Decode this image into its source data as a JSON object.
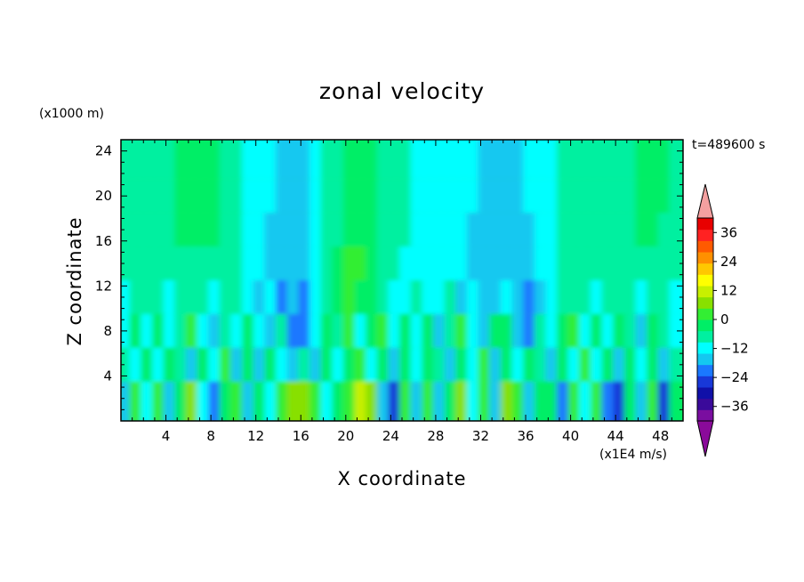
{
  "chart_data": {
    "type": "heatmap",
    "title": "zonal velocity",
    "xlabel": "X coordinate",
    "ylabel": "Z coordinate",
    "x_unit_label": "(x1E4 m/s)",
    "z_unit_label": "(x1000 m)",
    "time_label": "t=489600 s",
    "xlim": [
      0,
      50
    ],
    "ylim": [
      0,
      25
    ],
    "x_ticks": [
      4,
      8,
      12,
      16,
      20,
      24,
      28,
      32,
      36,
      40,
      44,
      48
    ],
    "y_ticks": [
      4,
      8,
      12,
      16,
      20,
      24
    ],
    "colorbar": {
      "min": -42,
      "max": 42,
      "step": 6,
      "tick_values": [
        36,
        24,
        12,
        0,
        -12,
        -24,
        -36
      ],
      "tick_labels": [
        "36",
        "24",
        "12",
        "0",
        "−12",
        "−24",
        "−36"
      ],
      "colors": [
        "#7a0ea0",
        "#3a0a9a",
        "#1010a8",
        "#1838d8",
        "#1a78ff",
        "#14c8f0",
        "#00ffff",
        "#00f0a0",
        "#00ee66",
        "#33ee33",
        "#88e000",
        "#c8f000",
        "#ffff00",
        "#ffc800",
        "#ff9000",
        "#ff5a00",
        "#ff2222",
        "#e80000"
      ],
      "over_color": "#f4a0a0",
      "under_color": "#8a0a9a"
    },
    "approx_field_rows": [
      {
        "z": 23,
        "values": [
          2,
          2,
          2,
          3,
          5,
          7,
          8,
          8,
          7,
          5,
          2,
          -1,
          -4,
          -6,
          -8,
          -8,
          -7,
          -4,
          0,
          4,
          8,
          9,
          8,
          5,
          2,
          0,
          -1,
          -2,
          -2,
          -3,
          -4,
          -6,
          -8,
          -9,
          -9,
          -8,
          -6,
          -4,
          -1,
          1,
          2,
          2,
          2,
          3,
          4,
          5,
          7,
          8,
          6,
          3
        ]
      },
      {
        "z": 20,
        "values": [
          2,
          2,
          2,
          3,
          5,
          7,
          8,
          8,
          7,
          5,
          2,
          -1,
          -4,
          -6,
          -8,
          -8,
          -7,
          -4,
          0,
          4,
          8,
          9,
          8,
          5,
          2,
          0,
          -1,
          -2,
          -2,
          -3,
          -4,
          -6,
          -8,
          -9,
          -9,
          -8,
          -6,
          -4,
          -1,
          1,
          2,
          2,
          2,
          3,
          4,
          5,
          7,
          8,
          6,
          3
        ]
      },
      {
        "z": 17,
        "values": [
          1,
          1,
          2,
          3,
          4,
          6,
          7,
          7,
          6,
          4,
          1,
          -2,
          -5,
          -7,
          -8,
          -9,
          -8,
          -5,
          0,
          5,
          10,
          11,
          9,
          5,
          2,
          0,
          -1,
          -2,
          -3,
          -4,
          -6,
          -7,
          -9,
          -10,
          -10,
          -9,
          -7,
          -4,
          -1,
          1,
          2,
          2,
          2,
          3,
          3,
          4,
          6,
          7,
          5,
          2
        ]
      },
      {
        "z": 14,
        "values": [
          0,
          1,
          2,
          3,
          4,
          5,
          5,
          5,
          4,
          3,
          0,
          -3,
          -6,
          -8,
          -10,
          -11,
          -9,
          -5,
          1,
          7,
          12,
          12,
          9,
          4,
          1,
          -1,
          -2,
          -3,
          -4,
          -5,
          -6,
          -8,
          -10,
          -11,
          -11,
          -10,
          -8,
          -5,
          -2,
          0,
          1,
          1,
          1,
          2,
          2,
          3,
          4,
          5,
          3,
          1
        ]
      },
      {
        "z": 11,
        "values": [
          -2,
          1,
          3,
          0,
          -4,
          2,
          5,
          1,
          -3,
          0,
          4,
          -2,
          -7,
          -4,
          -13,
          -9,
          -15,
          -6,
          2,
          6,
          14,
          10,
          6,
          3,
          -1,
          -3,
          2,
          -5,
          -3,
          0,
          -7,
          -4,
          -9,
          -12,
          -6,
          -10,
          -15,
          -7,
          -2,
          1,
          4,
          0,
          -3,
          2,
          5,
          1,
          -2,
          3,
          2,
          -1
        ]
      },
      {
        "z": 8,
        "values": [
          -3,
          6,
          -4,
          9,
          -6,
          3,
          12,
          -2,
          -8,
          5,
          -5,
          10,
          -6,
          -9,
          4,
          -14,
          -17,
          -5,
          6,
          3,
          12,
          -4,
          8,
          14,
          -3,
          7,
          -6,
          10,
          -8,
          2,
          13,
          -4,
          -9,
          6,
          11,
          -7,
          -16,
          3,
          -5,
          9,
          12,
          -3,
          7,
          -6,
          10,
          4,
          -8,
          11,
          2,
          -4
        ]
      },
      {
        "z": 5,
        "values": [
          4,
          -6,
          8,
          -5,
          10,
          2,
          -7,
          9,
          -4,
          12,
          -8,
          6,
          -10,
          11,
          -5,
          -12,
          3,
          -9,
          10,
          -4,
          9,
          12,
          -3,
          8,
          -7,
          11,
          -6,
          9,
          2,
          -8,
          10,
          -5,
          12,
          -9,
          7,
          -4,
          11,
          3,
          -10,
          8,
          -6,
          12,
          -5,
          9,
          -7,
          10,
          -4,
          6,
          -8,
          5
        ]
      },
      {
        "z": 2,
        "values": [
          -8,
          12,
          -6,
          14,
          -10,
          9,
          18,
          -4,
          -15,
          10,
          16,
          -12,
          8,
          -5,
          17,
          22,
          20,
          14,
          -6,
          10,
          15,
          24,
          18,
          -7,
          -22,
          12,
          -8,
          16,
          -10,
          9,
          18,
          -6,
          14,
          -9,
          20,
          16,
          -12,
          10,
          8,
          -14,
          12,
          -6,
          15,
          -18,
          -24,
          10,
          -8,
          14,
          -20,
          6
        ]
      }
    ]
  }
}
